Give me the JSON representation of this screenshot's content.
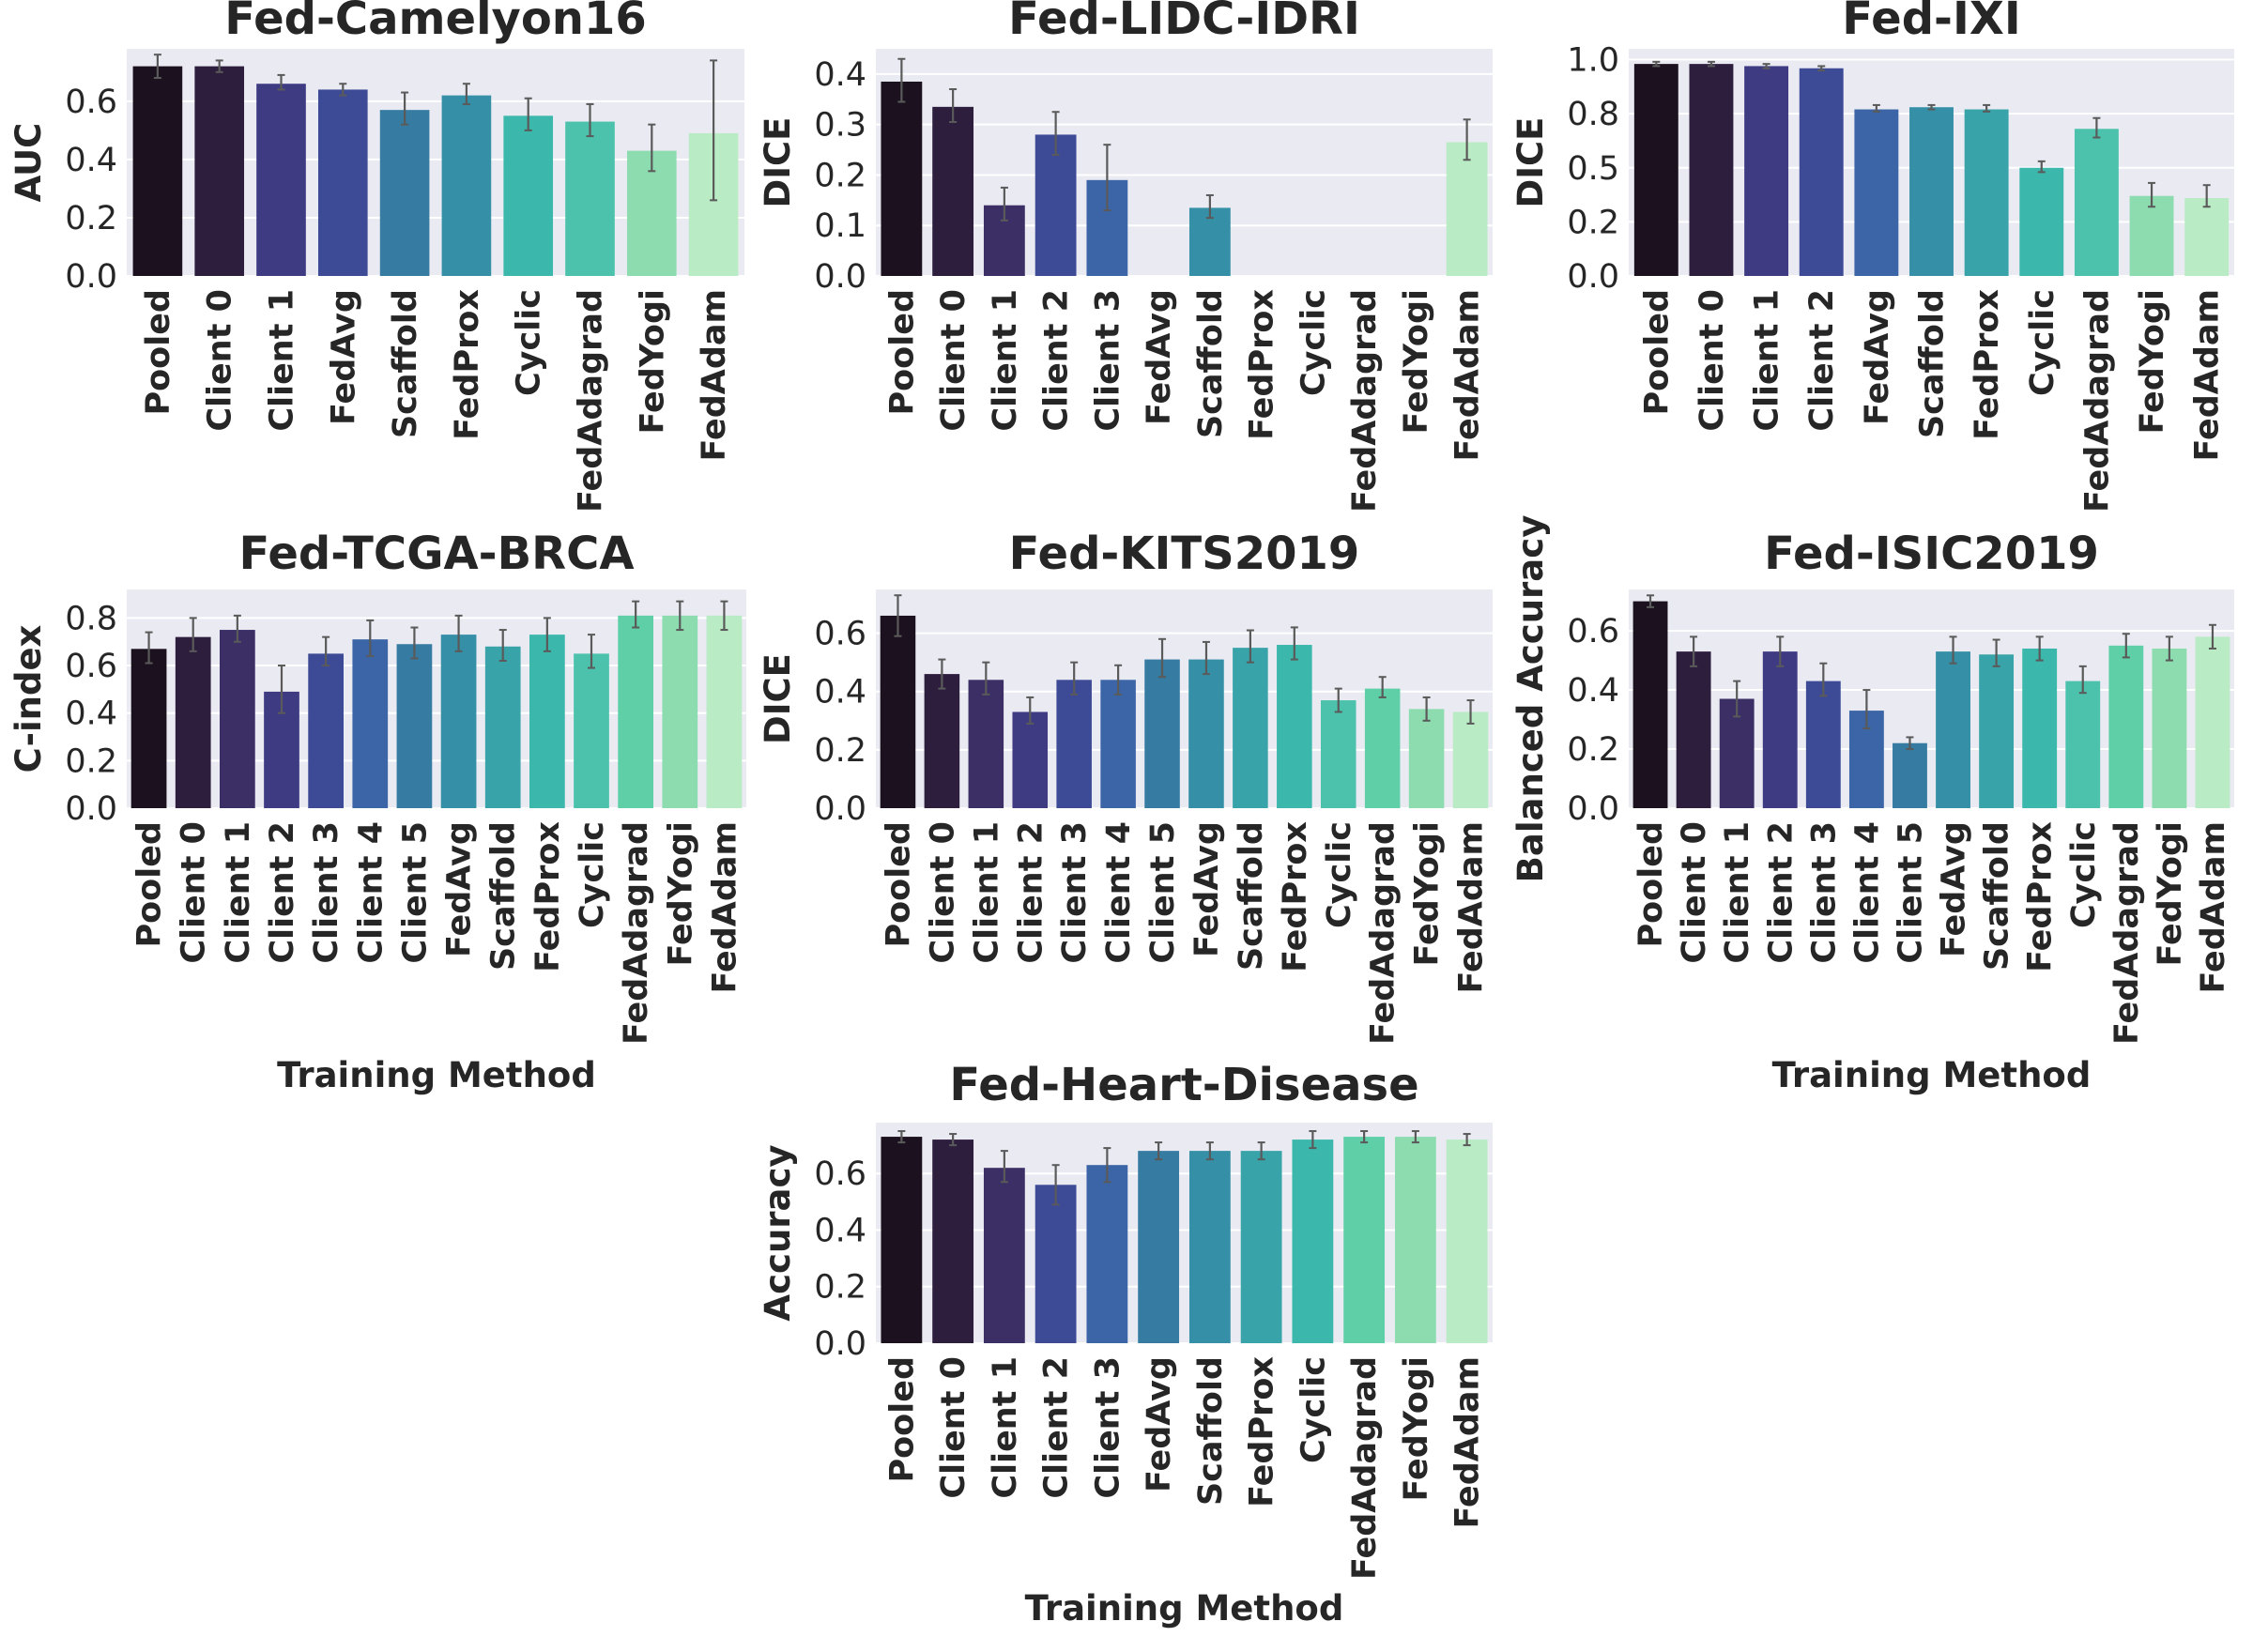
{
  "chart_data": [
    {
      "type": "bar",
      "title": "Fed-Camelyon16",
      "xlabel": "",
      "ylabel": "AUC",
      "ylim": [
        0,
        0.78
      ],
      "yticks": [
        "0.0",
        "0.2",
        "0.4",
        "0.6"
      ],
      "ytick_values": [
        0,
        0.2,
        0.4,
        0.6
      ],
      "categories": [
        "Pooled",
        "Client 0",
        "Client 1",
        "FedAvg",
        "Scaffold",
        "FedProx",
        "Cyclic",
        "FedAdagrad",
        "FedYogi",
        "FedAdam"
      ],
      "values": [
        0.72,
        0.72,
        0.66,
        0.64,
        0.57,
        0.62,
        0.55,
        0.53,
        0.43,
        0.49
      ],
      "err_low": [
        0.68,
        0.7,
        0.64,
        0.62,
        0.52,
        0.59,
        0.5,
        0.48,
        0.36,
        0.26
      ],
      "err_high": [
        0.76,
        0.74,
        0.69,
        0.66,
        0.63,
        0.66,
        0.61,
        0.59,
        0.52,
        0.74
      ],
      "grid": true
    },
    {
      "type": "bar",
      "title": "Fed-LIDC-IDRI",
      "xlabel": "",
      "ylabel": "DICE",
      "ylim": [
        0,
        0.45
      ],
      "yticks": [
        "0.0",
        "0.1",
        "0.2",
        "0.3",
        "0.4"
      ],
      "ytick_values": [
        0,
        0.1,
        0.2,
        0.3,
        0.4
      ],
      "categories": [
        "Pooled",
        "Client 0",
        "Client 1",
        "Client 2",
        "Client 3",
        "FedAvg",
        "Scaffold",
        "FedProx",
        "Cyclic",
        "FedAdagrad",
        "FedYogi",
        "FedAdam"
      ],
      "values": [
        0.385,
        0.335,
        0.14,
        0.28,
        0.19,
        0.0,
        0.135,
        0.0,
        0.0,
        0.0,
        0.0,
        0.265
      ],
      "err_low": [
        0.345,
        0.305,
        0.11,
        0.24,
        0.13,
        0.0,
        0.115,
        0.0,
        0.0,
        0.0,
        0.0,
        0.23
      ],
      "err_high": [
        0.43,
        0.37,
        0.175,
        0.325,
        0.26,
        0.0,
        0.16,
        0.0,
        0.0,
        0.0,
        0.0,
        0.31
      ],
      "grid": true
    },
    {
      "type": "bar",
      "title": "Fed-IXI",
      "xlabel": "",
      "ylabel": "DICE",
      "ylim": [
        0,
        1.05
      ],
      "yticks": [
        "0.0",
        "0.2",
        "0.5",
        "0.8",
        "1.0"
      ],
      "ytick_values": [
        0,
        0.25,
        0.5,
        0.75,
        1.0
      ],
      "categories": [
        "Pooled",
        "Client 0",
        "Client 1",
        "Client 2",
        "FedAvg",
        "Scaffold",
        "FedProx",
        "Cyclic",
        "FedAdagrad",
        "FedYogi",
        "FedAdam"
      ],
      "values": [
        0.98,
        0.98,
        0.97,
        0.96,
        0.77,
        0.78,
        0.77,
        0.5,
        0.68,
        0.37,
        0.36
      ],
      "err_low": [
        0.97,
        0.97,
        0.96,
        0.95,
        0.76,
        0.77,
        0.76,
        0.48,
        0.64,
        0.32,
        0.32
      ],
      "err_high": [
        0.99,
        0.99,
        0.98,
        0.97,
        0.79,
        0.79,
        0.79,
        0.53,
        0.73,
        0.43,
        0.42
      ],
      "grid": true
    },
    {
      "type": "bar",
      "title": "Fed-TCGA-BRCA",
      "xlabel": "Training Method",
      "ylabel": "C-index",
      "ylim": [
        0,
        0.92
      ],
      "yticks": [
        "0.0",
        "0.2",
        "0.4",
        "0.6",
        "0.8"
      ],
      "ytick_values": [
        0,
        0.2,
        0.4,
        0.6,
        0.8
      ],
      "categories": [
        "Pooled",
        "Client 0",
        "Client 1",
        "Client 2",
        "Client 3",
        "Client 4",
        "Client 5",
        "FedAvg",
        "Scaffold",
        "FedProx",
        "Cyclic",
        "FedAdagrad",
        "FedYogi",
        "FedAdam"
      ],
      "values": [
        0.67,
        0.72,
        0.75,
        0.49,
        0.65,
        0.71,
        0.69,
        0.73,
        0.68,
        0.73,
        0.65,
        0.81,
        0.81,
        0.81
      ],
      "err_low": [
        0.61,
        0.66,
        0.7,
        0.4,
        0.6,
        0.64,
        0.63,
        0.66,
        0.62,
        0.66,
        0.59,
        0.76,
        0.75,
        0.75
      ],
      "err_high": [
        0.74,
        0.8,
        0.81,
        0.6,
        0.72,
        0.79,
        0.76,
        0.81,
        0.75,
        0.8,
        0.73,
        0.87,
        0.87,
        0.87
      ],
      "grid": true
    },
    {
      "type": "bar",
      "title": "Fed-KITS2019",
      "xlabel": "",
      "ylabel": "DICE",
      "ylim": [
        0,
        0.75
      ],
      "yticks": [
        "0.0",
        "0.2",
        "0.4",
        "0.6"
      ],
      "ytick_values": [
        0,
        0.2,
        0.4,
        0.6
      ],
      "categories": [
        "Pooled",
        "Client 0",
        "Client 1",
        "Client 2",
        "Client 3",
        "Client 4",
        "Client 5",
        "FedAvg",
        "Scaffold",
        "FedProx",
        "Cyclic",
        "FedAdagrad",
        "FedYogi",
        "FedAdam"
      ],
      "values": [
        0.66,
        0.46,
        0.44,
        0.33,
        0.44,
        0.44,
        0.51,
        0.51,
        0.55,
        0.56,
        0.37,
        0.41,
        0.34,
        0.33
      ],
      "err_low": [
        0.59,
        0.41,
        0.39,
        0.29,
        0.39,
        0.39,
        0.45,
        0.46,
        0.5,
        0.51,
        0.33,
        0.38,
        0.3,
        0.29
      ],
      "err_high": [
        0.73,
        0.51,
        0.5,
        0.38,
        0.5,
        0.49,
        0.58,
        0.57,
        0.61,
        0.62,
        0.41,
        0.45,
        0.38,
        0.37
      ],
      "grid": true
    },
    {
      "type": "bar",
      "title": "Fed-ISIC2019",
      "xlabel": "Training Method",
      "ylabel": "Balanced Accuracy",
      "ylim": [
        0,
        0.74
      ],
      "yticks": [
        "0.0",
        "0.2",
        "0.4",
        "0.6"
      ],
      "ytick_values": [
        0,
        0.2,
        0.4,
        0.6
      ],
      "categories": [
        "Pooled",
        "Client 0",
        "Client 1",
        "Client 2",
        "Client 3",
        "Client 4",
        "Client 5",
        "FedAvg",
        "Scaffold",
        "FedProx",
        "Cyclic",
        "FedAdagrad",
        "FedYogi",
        "FedAdam"
      ],
      "values": [
        0.7,
        0.53,
        0.37,
        0.53,
        0.43,
        0.33,
        0.22,
        0.53,
        0.52,
        0.54,
        0.43,
        0.55,
        0.54,
        0.58
      ],
      "err_low": [
        0.68,
        0.48,
        0.31,
        0.48,
        0.38,
        0.27,
        0.2,
        0.49,
        0.48,
        0.5,
        0.39,
        0.51,
        0.5,
        0.54
      ],
      "err_high": [
        0.72,
        0.58,
        0.43,
        0.58,
        0.49,
        0.4,
        0.24,
        0.58,
        0.57,
        0.58,
        0.48,
        0.59,
        0.58,
        0.62
      ],
      "grid": true
    },
    {
      "type": "bar",
      "title": "Fed-Heart-Disease",
      "xlabel": "Training Method",
      "ylabel": "Accuracy",
      "ylim": [
        0,
        0.78
      ],
      "yticks": [
        "0.0",
        "0.2",
        "0.4",
        "0.6"
      ],
      "ytick_values": [
        0,
        0.2,
        0.4,
        0.6
      ],
      "categories": [
        "Pooled",
        "Client 0",
        "Client 1",
        "Client 2",
        "Client 3",
        "FedAvg",
        "Scaffold",
        "FedProx",
        "Cyclic",
        "FedAdagrad",
        "FedYogi",
        "FedAdam"
      ],
      "values": [
        0.73,
        0.72,
        0.62,
        0.56,
        0.63,
        0.68,
        0.68,
        0.68,
        0.72,
        0.73,
        0.73,
        0.72
      ],
      "err_low": [
        0.71,
        0.7,
        0.57,
        0.49,
        0.57,
        0.65,
        0.65,
        0.65,
        0.69,
        0.71,
        0.71,
        0.7
      ],
      "err_high": [
        0.75,
        0.74,
        0.68,
        0.63,
        0.69,
        0.71,
        0.71,
        0.71,
        0.75,
        0.75,
        0.75,
        0.74
      ],
      "grid": true
    }
  ]
}
